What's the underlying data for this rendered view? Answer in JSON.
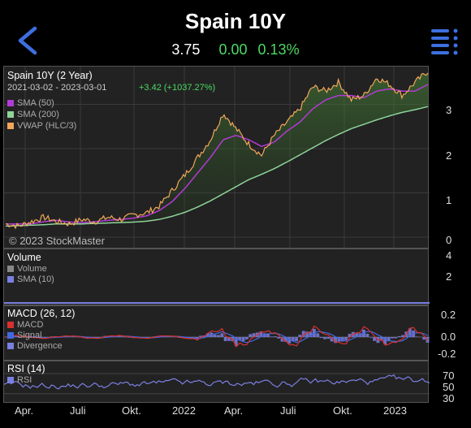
{
  "header": {
    "title": "Spain 10Y",
    "price": "3.75",
    "change": "0.00",
    "change_pct": "0.13%"
  },
  "main_panel": {
    "title": "Spain 10Y (2 Year)",
    "range": "2021-03-02 - 2023-03-01",
    "perf": "+3.42 (+1037.27%)",
    "legend": [
      {
        "label": "SMA (50)",
        "color": "#b23ad6"
      },
      {
        "label": "SMA (200)",
        "color": "#8fd39a"
      },
      {
        "label": "VWAP (HLC/3)",
        "color": "#f2a65a"
      }
    ],
    "watermark": "© 2023 StockMaster",
    "y_ticks": [
      "3",
      "2",
      "1",
      "0"
    ]
  },
  "volume_panel": {
    "title": "Volume",
    "legend": [
      {
        "label": "Volume",
        "color": "#888888"
      },
      {
        "label": "SMA (10)",
        "color": "#7a7fe0"
      }
    ],
    "y_ticks": [
      "4",
      "2"
    ]
  },
  "macd_panel": {
    "title": "MACD (26, 12)",
    "legend": [
      {
        "label": "MACD",
        "color": "#d83030"
      },
      {
        "label": "Signal",
        "color": "#4169e1"
      },
      {
        "label": "Divergence",
        "color": "#7a7fe0"
      }
    ],
    "y_ticks": [
      "0.2",
      "0.0",
      "-0.2"
    ]
  },
  "rsi_panel": {
    "title": "RSI (14)",
    "legend": [
      {
        "label": "RSI",
        "color": "#7a7fe0"
      }
    ],
    "y_ticks": [
      "70",
      "50",
      "30"
    ]
  },
  "x_ticks": [
    "Apr.",
    "Juli",
    "Okt.",
    "2022",
    "Apr.",
    "Juli",
    "Okt.",
    "2023"
  ],
  "chart_data": {
    "type": "line",
    "x_ticks": [
      "Apr.",
      "Juli",
      "Okt.",
      "2022",
      "Apr.",
      "Juli",
      "Okt.",
      "2023"
    ],
    "ylim": [
      0,
      3.8
    ],
    "series": [
      {
        "name": "VWAP (HLC/3)",
        "values": [
          0.3,
          0.25,
          0.35,
          0.45,
          0.35,
          0.3,
          0.4,
          0.35,
          0.45,
          0.4,
          0.5,
          0.55,
          0.7,
          1.05,
          1.4,
          1.8,
          2.2,
          2.8,
          2.45,
          2.1,
          1.85,
          2.3,
          2.6,
          2.9,
          3.4,
          3.3,
          3.5,
          3.1,
          3.2,
          3.6,
          3.45,
          3.2,
          3.5,
          3.75
        ]
      },
      {
        "name": "SMA (50)",
        "values": [
          0.3,
          0.3,
          0.3,
          0.35,
          0.38,
          0.34,
          0.33,
          0.35,
          0.38,
          0.4,
          0.43,
          0.48,
          0.6,
          0.8,
          1.1,
          1.45,
          1.8,
          2.2,
          2.3,
          2.2,
          2.05,
          2.15,
          2.4,
          2.6,
          2.9,
          3.1,
          3.2,
          3.2,
          3.15,
          3.3,
          3.35,
          3.3,
          3.3,
          3.45
        ]
      },
      {
        "name": "SMA (200)",
        "values": [
          0.25,
          0.26,
          0.27,
          0.28,
          0.3,
          0.3,
          0.3,
          0.31,
          0.32,
          0.33,
          0.34,
          0.36,
          0.4,
          0.47,
          0.56,
          0.68,
          0.82,
          0.98,
          1.14,
          1.3,
          1.42,
          1.55,
          1.7,
          1.86,
          2.02,
          2.18,
          2.32,
          2.45,
          2.55,
          2.65,
          2.74,
          2.82,
          2.88,
          2.95
        ]
      }
    ]
  }
}
